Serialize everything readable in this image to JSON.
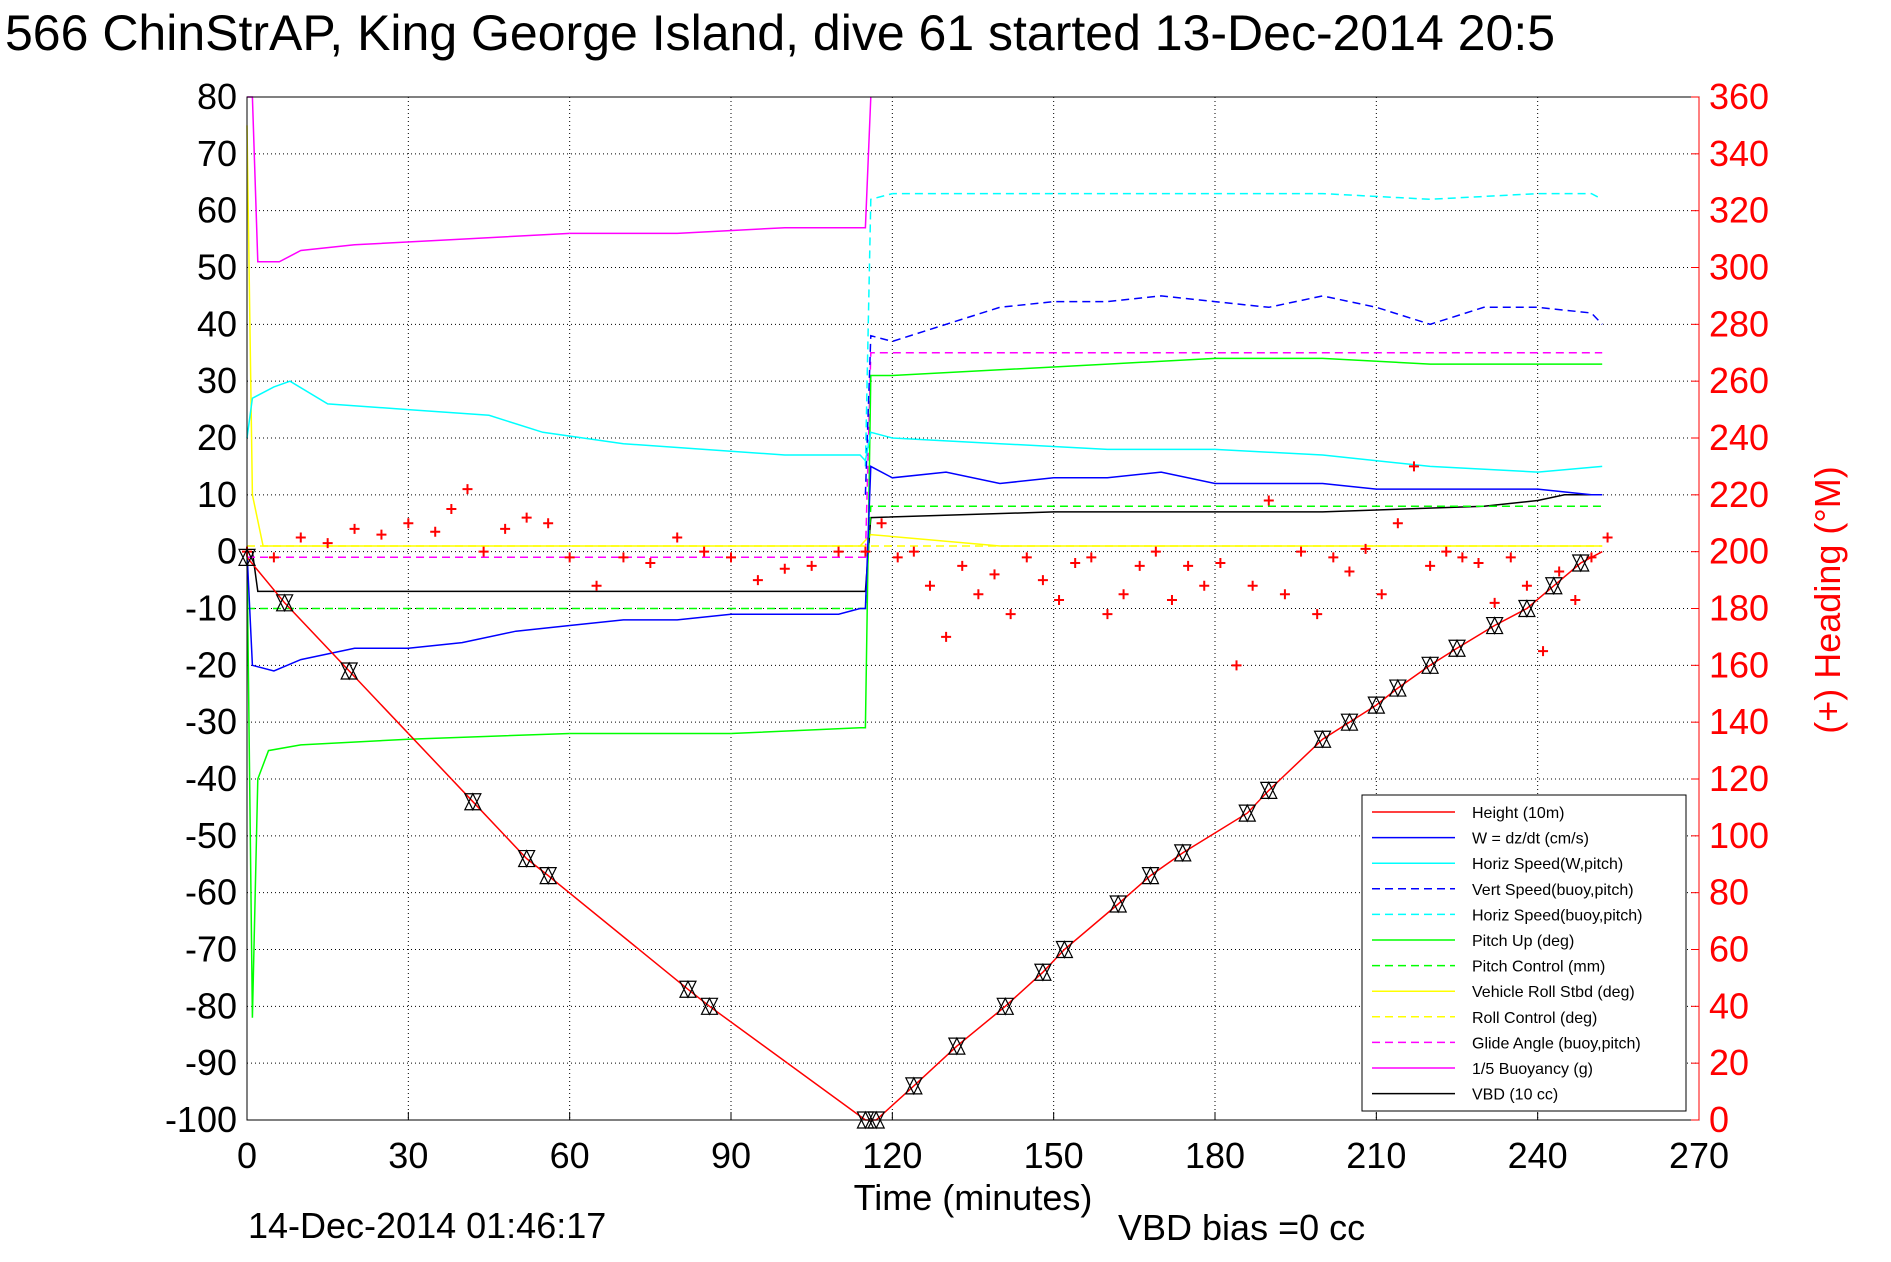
{
  "chart_data": {
    "type": "line",
    "title": "566 ChinStrAP, King George Island, dive 61 started 13-Dec-2014 20:5",
    "xlabel": "Time (minutes)",
    "ylabel_right": "(+) Heading (°M)",
    "xlim": [
      0,
      270
    ],
    "ylim_left": [
      -100,
      80
    ],
    "ylim_right": [
      0,
      360
    ],
    "x_ticks": [
      "0",
      "30",
      "60",
      "90",
      "120",
      "150",
      "180",
      "210",
      "240",
      "270"
    ],
    "y_ticks_left": [
      "80",
      "70",
      "60",
      "50",
      "40",
      "30",
      "20",
      "10",
      "0",
      "-10",
      "-20",
      "-30",
      "-40",
      "-50",
      "-60",
      "-70",
      "-80",
      "-90",
      "-100"
    ],
    "y_ticks_right": [
      "360",
      "340",
      "320",
      "300",
      "280",
      "260",
      "240",
      "220",
      "200",
      "180",
      "160",
      "140",
      "120",
      "100",
      "80",
      "60",
      "40",
      "20",
      "0"
    ],
    "grid": true,
    "legend_position": "bottom-right",
    "footer_date": "14-Dec-2014 01:46:17",
    "footer_vbd": "VBD bias =0 cc",
    "series": [
      {
        "name": "Height (10m)",
        "color": "#ff0000",
        "style": "solid",
        "x": [
          0,
          7,
          19,
          42,
          52,
          56,
          82,
          86,
          115,
          117,
          124,
          132,
          141,
          148,
          152,
          162,
          168,
          174,
          186,
          190,
          200,
          205,
          210,
          214,
          220,
          225,
          232,
          238,
          243,
          248,
          252
        ],
        "y": [
          -1,
          -9,
          -21,
          -44,
          -54,
          -57,
          -77,
          -80,
          -100,
          -100,
          -94,
          -87,
          -80,
          -74,
          -70,
          -62,
          -57,
          -53,
          -46,
          -42,
          -33,
          -30,
          -27,
          -24,
          -20,
          -17,
          -13,
          -10,
          -6,
          -2,
          0
        ]
      },
      {
        "name": "W = dz/dt (cm/s)",
        "color": "#0000ff",
        "style": "solid",
        "x": [
          0,
          1,
          5,
          10,
          20,
          30,
          40,
          50,
          60,
          70,
          80,
          90,
          100,
          110,
          114,
          115,
          116,
          120,
          130,
          140,
          150,
          160,
          170,
          180,
          190,
          200,
          210,
          220,
          230,
          240,
          250,
          252
        ],
        "y": [
          0,
          -20,
          -21,
          -19,
          -17,
          -17,
          -16,
          -14,
          -13,
          -12,
          -12,
          -11,
          -11,
          -11,
          -10,
          -10,
          15,
          13,
          14,
          12,
          13,
          13,
          14,
          12,
          12,
          12,
          11,
          11,
          11,
          11,
          10,
          10
        ]
      },
      {
        "name": "Horiz Speed(W,pitch)",
        "color": "#00ffff",
        "style": "solid",
        "x": [
          0,
          1,
          5,
          8,
          15,
          30,
          45,
          55,
          70,
          85,
          100,
          114,
          115,
          116,
          120,
          140,
          160,
          180,
          200,
          220,
          240,
          252
        ],
        "y": [
          20,
          27,
          29,
          30,
          26,
          25,
          24,
          21,
          19,
          18,
          17,
          17,
          16,
          21,
          20,
          19,
          18,
          18,
          17,
          15,
          14,
          15
        ]
      },
      {
        "name": "Vert Speed(buoy,pitch)",
        "color": "#0000ff",
        "style": "dashed",
        "x": [
          115,
          116,
          120,
          130,
          140,
          150,
          160,
          170,
          180,
          190,
          200,
          210,
          220,
          230,
          240,
          250,
          252
        ],
        "y": [
          10,
          38,
          37,
          40,
          43,
          44,
          44,
          45,
          44,
          43,
          45,
          43,
          40,
          43,
          43,
          42,
          40
        ]
      },
      {
        "name": "Horiz Speed(buoy,pitch)",
        "color": "#00ffff",
        "style": "dashed",
        "x": [
          115,
          116,
          120,
          140,
          160,
          180,
          200,
          220,
          240,
          250,
          252
        ],
        "y": [
          15,
          62,
          63,
          63,
          63,
          63,
          63,
          62,
          63,
          63,
          62
        ]
      },
      {
        "name": "Pitch Up (deg)",
        "color": "#00ff00",
        "style": "solid",
        "x": [
          0,
          1,
          2,
          4,
          10,
          30,
          60,
          90,
          114,
          115,
          116,
          120,
          140,
          160,
          180,
          200,
          220,
          240,
          252
        ],
        "y": [
          0,
          -82,
          -40,
          -35,
          -34,
          -33,
          -32,
          -32,
          -31,
          -31,
          31,
          31,
          32,
          33,
          34,
          34,
          33,
          33,
          33
        ]
      },
      {
        "name": "Pitch Control (mm)",
        "color": "#00ff00",
        "style": "dashed",
        "x": [
          0,
          115,
          116,
          252
        ],
        "y": [
          -10,
          -10,
          8,
          8
        ]
      },
      {
        "name": "Vehicle Roll Stbd (deg)",
        "color": "#ffff00",
        "style": "solid",
        "x": [
          0,
          1,
          3,
          30,
          60,
          90,
          114,
          116,
          140,
          180,
          210,
          240,
          252
        ],
        "y": [
          75,
          10,
          1,
          1,
          1,
          1,
          1,
          3,
          1,
          1,
          1,
          1,
          1
        ]
      },
      {
        "name": "Roll Control (deg)",
        "color": "#ffff00",
        "style": "dashed",
        "x": [
          0,
          115,
          116,
          252
        ],
        "y": [
          1,
          1,
          1,
          1
        ]
      },
      {
        "name": "Glide Angle (buoy,pitch)",
        "color": "#ff00ff",
        "style": "dashed",
        "x": [
          0,
          115,
          116,
          252
        ],
        "y": [
          -1,
          -1,
          35,
          35
        ]
      },
      {
        "name": "1/5 Buoyancy (g)",
        "color": "#ff00ff",
        "style": "solid",
        "x": [
          0,
          1,
          2,
          6,
          10,
          20,
          40,
          60,
          80,
          100,
          114,
          115,
          116
        ],
        "y": [
          80,
          80,
          51,
          51,
          53,
          54,
          55,
          56,
          56,
          57,
          57,
          57,
          80
        ]
      },
      {
        "name": "VBD (10 cc)",
        "color": "#000000",
        "style": "solid",
        "x": [
          0,
          1,
          2,
          114,
          115,
          116,
          150,
          200,
          230,
          240,
          245,
          252
        ],
        "y": [
          0,
          0,
          -7,
          -7,
          -7,
          6,
          7,
          7,
          8,
          9,
          10,
          10
        ]
      }
    ],
    "heading": {
      "name": "Heading",
      "color": "#ff0000",
      "marker": "+",
      "axis": "right",
      "x": [
        0,
        5,
        10,
        15,
        20,
        25,
        30,
        35,
        38,
        41,
        44,
        48,
        52,
        56,
        60,
        65,
        70,
        75,
        80,
        85,
        90,
        95,
        100,
        105,
        110,
        115,
        118,
        121,
        124,
        127,
        130,
        133,
        136,
        139,
        142,
        145,
        148,
        151,
        154,
        157,
        160,
        163,
        166,
        169,
        172,
        175,
        178,
        181,
        184,
        187,
        190,
        193,
        196,
        199,
        202,
        205,
        208,
        211,
        214,
        217,
        220,
        223,
        226,
        229,
        232,
        235,
        238,
        241,
        244,
        247,
        250,
        253
      ],
      "y": [
        200,
        198,
        205,
        203,
        208,
        206,
        210,
        207,
        215,
        222,
        200,
        208,
        212,
        210,
        198,
        188,
        198,
        196,
        205,
        200,
        198,
        190,
        194,
        195,
        200,
        200,
        210,
        198,
        200,
        188,
        170,
        195,
        185,
        192,
        178,
        198,
        190,
        183,
        196,
        198,
        178,
        185,
        195,
        200,
        183,
        195,
        188,
        196,
        160,
        188,
        218,
        185,
        200,
        178,
        198,
        193,
        201,
        185,
        210,
        230,
        195,
        200,
        198,
        196,
        182,
        198,
        188,
        165,
        193,
        183,
        198,
        205
      ]
    }
  },
  "markers": {
    "name": "Triangle markers",
    "x": [
      0,
      7,
      19,
      42,
      52,
      56,
      82,
      86,
      115,
      117,
      124,
      132,
      141,
      148,
      152,
      162,
      168,
      174,
      186,
      190,
      200,
      205,
      210,
      214,
      220,
      225,
      232,
      238,
      243,
      248
    ],
    "y": [
      -1,
      -9,
      -21,
      -44,
      -54,
      -57,
      -77,
      -80,
      -100,
      -100,
      -94,
      -87,
      -80,
      -74,
      -70,
      -62,
      -57,
      -53,
      -46,
      -42,
      -33,
      -30,
      -27,
      -24,
      -20,
      -17,
      -13,
      -10,
      -6,
      -2
    ]
  }
}
